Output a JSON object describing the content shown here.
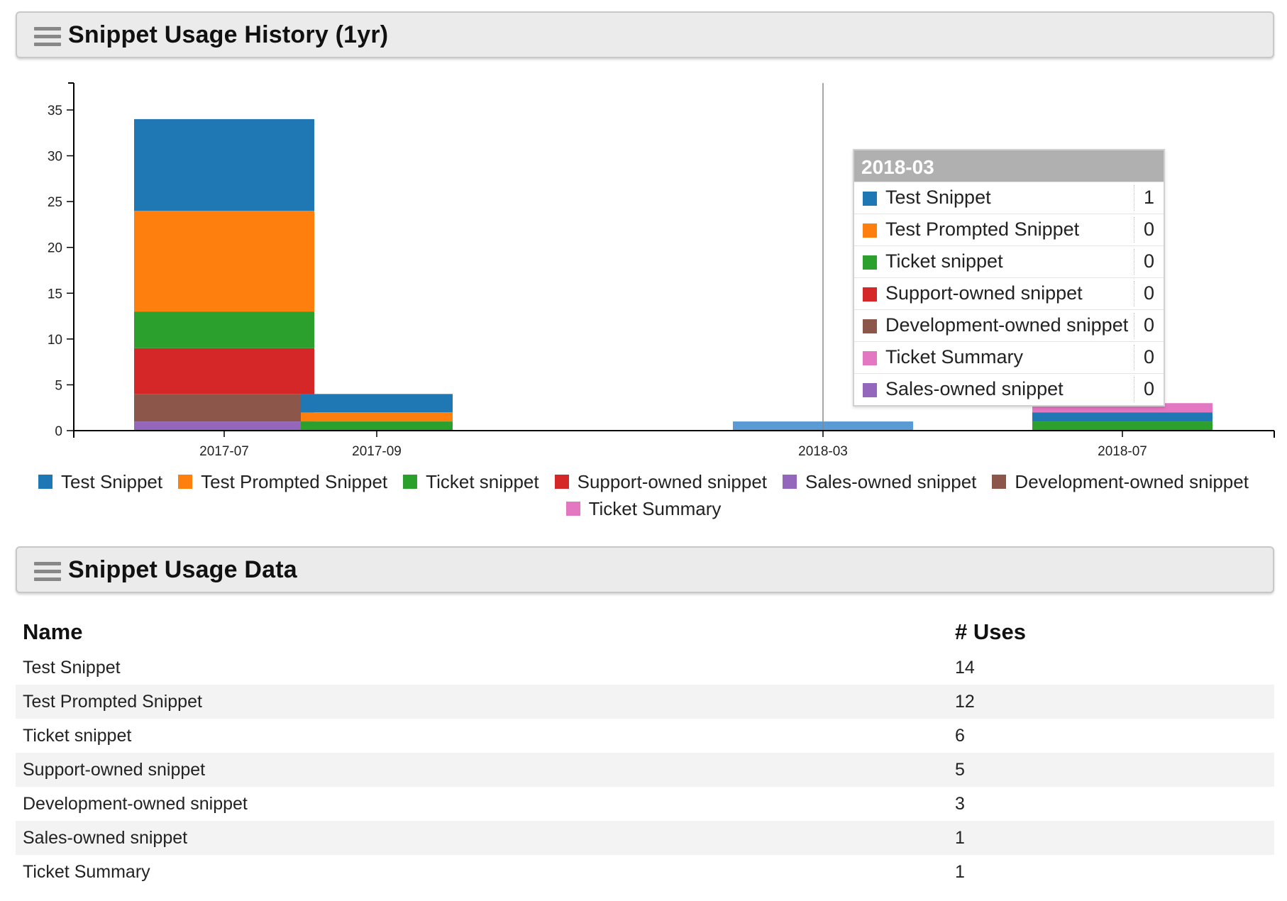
{
  "history_panel": {
    "title": "Snippet Usage History (1yr)"
  },
  "data_panel": {
    "title": "Snippet Usage Data"
  },
  "chart_data": {
    "type": "bar",
    "stacked": true,
    "categories": [
      "2017-07",
      "2017-09",
      "2018-03",
      "2018-07"
    ],
    "yticks": [
      0,
      5,
      10,
      15,
      20,
      25,
      30,
      35
    ],
    "ylim": [
      0,
      37
    ],
    "series": [
      {
        "name": "Sales-owned snippet",
        "color": "#9467bd",
        "values": [
          1,
          0,
          0,
          0
        ]
      },
      {
        "name": "Development-owned snippet",
        "color": "#8c564b",
        "values": [
          3,
          0,
          0,
          0
        ]
      },
      {
        "name": "Support-owned snippet",
        "color": "#d62728",
        "values": [
          5,
          0,
          0,
          0
        ]
      },
      {
        "name": "Ticket snippet",
        "color": "#2ca02c",
        "values": [
          4,
          1,
          0,
          1
        ]
      },
      {
        "name": "Test Prompted Snippet",
        "color": "#ff7f0e",
        "values": [
          11,
          1,
          0,
          0
        ]
      },
      {
        "name": "Test Snippet",
        "color": "#1f77b4",
        "values": [
          10,
          2,
          1,
          1
        ]
      },
      {
        "name": "Ticket Summary",
        "color": "#e377c2",
        "values": [
          0,
          0,
          0,
          1
        ]
      }
    ],
    "legend": {
      "rows": [
        [
          {
            "label": "Test Snippet",
            "color": "#1f77b4"
          },
          {
            "label": "Test Prompted Snippet",
            "color": "#ff7f0e"
          },
          {
            "label": "Ticket snippet",
            "color": "#2ca02c"
          },
          {
            "label": "Support-owned snippet",
            "color": "#d62728"
          },
          {
            "label": "Sales-owned snippet",
            "color": "#9467bd"
          },
          {
            "label": "Development-owned snippet",
            "color": "#8c564b"
          }
        ],
        [
          {
            "label": "Ticket Summary",
            "color": "#e377c2"
          }
        ]
      ]
    },
    "hover": {
      "category": "2018-03",
      "rows": [
        {
          "label": "Test Snippet",
          "value": "1",
          "color": "#1f77b4"
        },
        {
          "label": "Test Prompted Snippet",
          "value": "0",
          "color": "#ff7f0e"
        },
        {
          "label": "Ticket snippet",
          "value": "0",
          "color": "#2ca02c"
        },
        {
          "label": "Support-owned snippet",
          "value": "0",
          "color": "#d62728"
        },
        {
          "label": "Development-owned snippet",
          "value": "0",
          "color": "#8c564b"
        },
        {
          "label": "Ticket Summary",
          "value": "0",
          "color": "#e377c2"
        },
        {
          "label": "Sales-owned snippet",
          "value": "0",
          "color": "#9467bd"
        }
      ]
    }
  },
  "table": {
    "headers": {
      "name": "Name",
      "uses": "# Uses"
    },
    "rows": [
      {
        "name": "Test Snippet",
        "uses": "14"
      },
      {
        "name": "Test Prompted Snippet",
        "uses": "12"
      },
      {
        "name": "Ticket snippet",
        "uses": "6"
      },
      {
        "name": "Support-owned snippet",
        "uses": "5"
      },
      {
        "name": "Development-owned snippet",
        "uses": "3"
      },
      {
        "name": "Sales-owned snippet",
        "uses": "1"
      },
      {
        "name": "Ticket Summary",
        "uses": "1"
      }
    ]
  }
}
